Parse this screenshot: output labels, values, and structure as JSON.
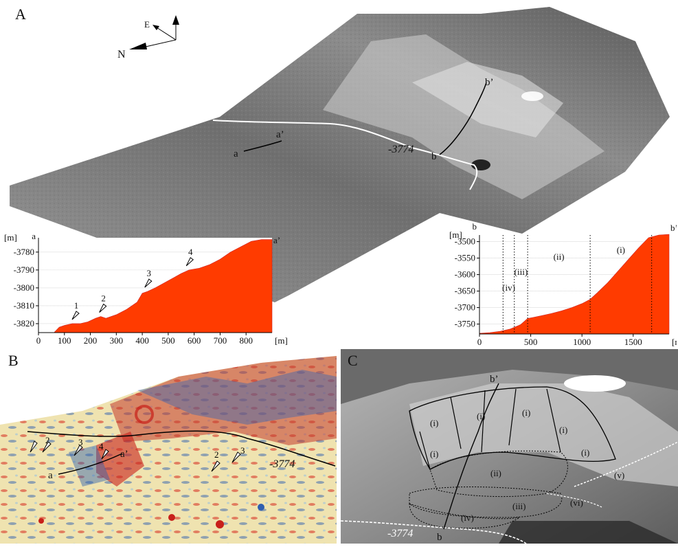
{
  "panels": {
    "a": {
      "label": "A"
    },
    "b": {
      "label": "B"
    },
    "c": {
      "label": "C"
    }
  },
  "compass": {
    "east": "E",
    "north": "N"
  },
  "map_labels": {
    "a_start": "a",
    "a_end": "a’",
    "b_start": "b",
    "b_end": "b’",
    "contour": "-3774"
  },
  "colors": {
    "profile_fill": "#ff3b00",
    "contour_line": "#ffffff",
    "relief_hot": "#d42a1f",
    "relief_cold": "#2f5fb0",
    "relief_neutral": "#efe3b0"
  },
  "chart_data": [
    {
      "type": "area",
      "units_label": "[m]",
      "start_label": "a",
      "end_label": "a’",
      "xunit": "[m]",
      "xlim": [
        0,
        900
      ],
      "ylim": [
        -3825,
        -3772
      ],
      "xticks": [
        0,
        100,
        200,
        300,
        400,
        500,
        600,
        700,
        800
      ],
      "yticks": [
        -3780,
        -3790,
        -3800,
        -3810,
        -3820
      ],
      "x": [
        0,
        60,
        80,
        100,
        130,
        160,
        190,
        220,
        240,
        260,
        300,
        340,
        380,
        400,
        420,
        450,
        500,
        550,
        580,
        620,
        660,
        700,
        740,
        780,
        820,
        860,
        900
      ],
      "y": [
        -3825,
        -3825,
        -3822,
        -3821,
        -3820,
        -3820,
        -3819,
        -3817,
        -3816,
        -3817,
        -3815,
        -3812,
        -3808,
        -3803,
        -3802,
        -3800,
        -3796,
        -3792,
        -3790,
        -3789,
        -3787,
        -3784,
        -3780,
        -3777,
        -3774,
        -3773,
        -3773
      ],
      "markers": [
        {
          "label": "1",
          "x": 135,
          "y": -3820
        },
        {
          "label": "2",
          "x": 240,
          "y": -3816
        },
        {
          "label": "3",
          "x": 415,
          "y": -3802
        },
        {
          "label": "4",
          "x": 575,
          "y": -3790
        }
      ]
    },
    {
      "type": "area",
      "units_label": "[m]",
      "start_label": "b",
      "end_label": "b’",
      "xunit": "[m]",
      "xlim": [
        0,
        1850
      ],
      "ylim": [
        -3780,
        -3480
      ],
      "xticks": [
        0,
        500,
        1000,
        1500
      ],
      "yticks": [
        -3500,
        -3550,
        -3600,
        -3650,
        -3700,
        -3750
      ],
      "x": [
        0,
        100,
        200,
        300,
        400,
        470,
        520,
        600,
        700,
        800,
        900,
        1000,
        1080,
        1150,
        1250,
        1350,
        1450,
        1550,
        1650,
        1750,
        1850
      ],
      "y": [
        -3778,
        -3776,
        -3772,
        -3765,
        -3752,
        -3733,
        -3730,
        -3725,
        -3718,
        -3710,
        -3700,
        -3688,
        -3675,
        -3655,
        -3625,
        -3590,
        -3555,
        -3520,
        -3488,
        -3480,
        -3478
      ],
      "zones": [
        {
          "label": "(iv)",
          "from": 230,
          "to": 340
        },
        {
          "label": "(iii)",
          "from": 340,
          "to": 470
        },
        {
          "label": "(ii)",
          "from": 470,
          "to": 1080
        },
        {
          "label": "(i)",
          "from": 1080,
          "to": 1680
        }
      ],
      "zone_boundaries": [
        230,
        340,
        470,
        1080,
        1680
      ]
    }
  ],
  "panel_c_labels": {
    "zones": [
      "(i)",
      "(i)",
      "(i)",
      "(i)",
      "(i)",
      "(i)",
      "(ii)",
      "(iii)",
      "(iv)",
      "(v)",
      "(vi)"
    ],
    "b_start": "b",
    "b_end": "b’",
    "contour": "-3774"
  },
  "panel_b_markers": [
    "2",
    "3",
    "4",
    "2",
    "3"
  ]
}
